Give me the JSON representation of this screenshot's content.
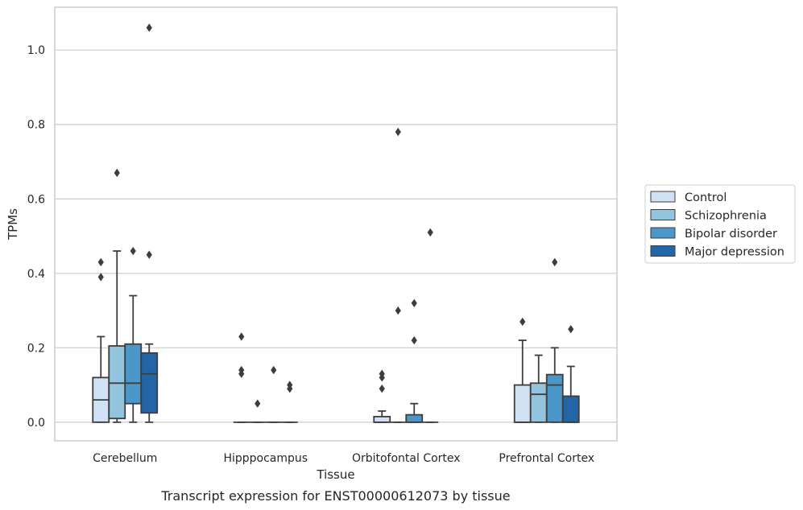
{
  "chart_data": {
    "type": "box",
    "xlabel": "Tissue",
    "ylabel": "TPMs",
    "caption": "Transcript expression for ENST00000612073 by tissue",
    "ylim": [
      -0.05,
      1.115
    ],
    "yticks": [
      0.0,
      0.2,
      0.4,
      0.6,
      0.8,
      1.0
    ],
    "ytick_labels": [
      "0.0",
      "0.2",
      "0.4",
      "0.6",
      "0.8",
      "1.0"
    ],
    "grid": true,
    "legend_position": "right",
    "categories": [
      "Cerebellum",
      "Hipppocampus",
      "Orbitofontal Cortex",
      "Prefrontal Cortex"
    ],
    "series": [
      {
        "name": "Control",
        "color": "#cfe1f2",
        "boxes": [
          {
            "q1": 0.0,
            "median": 0.06,
            "q3": 0.12,
            "whisker_low": 0.0,
            "whisker_high": 0.23,
            "outliers": [
              0.39,
              0.43
            ]
          },
          {
            "q1": 0.0,
            "median": 0.0,
            "q3": 0.0,
            "whisker_low": 0.0,
            "whisker_high": 0.0,
            "outliers": [
              0.13,
              0.14,
              0.23
            ]
          },
          {
            "q1": 0.0,
            "median": 0.0,
            "q3": 0.015,
            "whisker_low": 0.0,
            "whisker_high": 0.03,
            "outliers": [
              0.09,
              0.12,
              0.13
            ]
          },
          {
            "q1": 0.0,
            "median": 0.0,
            "q3": 0.1,
            "whisker_low": 0.0,
            "whisker_high": 0.22,
            "outliers": [
              0.27
            ]
          }
        ]
      },
      {
        "name": "Schizophrenia",
        "color": "#93c4de",
        "boxes": [
          {
            "q1": 0.01,
            "median": 0.105,
            "q3": 0.205,
            "whisker_low": 0.0,
            "whisker_high": 0.46,
            "outliers": [
              0.67
            ]
          },
          {
            "q1": 0.0,
            "median": 0.0,
            "q3": 0.0,
            "whisker_low": 0.0,
            "whisker_high": 0.0,
            "outliers": [
              0.05
            ]
          },
          {
            "q1": 0.0,
            "median": 0.0,
            "q3": 0.0,
            "whisker_low": 0.0,
            "whisker_high": 0.0,
            "outliers": [
              0.3,
              0.78
            ]
          },
          {
            "q1": 0.0,
            "median": 0.075,
            "q3": 0.105,
            "whisker_low": 0.0,
            "whisker_high": 0.18,
            "outliers": []
          }
        ]
      },
      {
        "name": "Bipolar disorder",
        "color": "#4b97c9",
        "boxes": [
          {
            "q1": 0.05,
            "median": 0.105,
            "q3": 0.21,
            "whisker_low": 0.0,
            "whisker_high": 0.34,
            "outliers": [
              0.46
            ]
          },
          {
            "q1": 0.0,
            "median": 0.0,
            "q3": 0.0,
            "whisker_low": 0.0,
            "whisker_high": 0.0,
            "outliers": [
              0.14
            ]
          },
          {
            "q1": 0.0,
            "median": 0.0,
            "q3": 0.02,
            "whisker_low": 0.0,
            "whisker_high": 0.05,
            "outliers": [
              0.22,
              0.32
            ]
          },
          {
            "q1": 0.0,
            "median": 0.1,
            "q3": 0.128,
            "whisker_low": 0.0,
            "whisker_high": 0.2,
            "outliers": [
              0.43
            ]
          }
        ]
      },
      {
        "name": "Major depression",
        "color": "#2366a8",
        "boxes": [
          {
            "q1": 0.025,
            "median": 0.13,
            "q3": 0.186,
            "whisker_low": 0.0,
            "whisker_high": 0.21,
            "outliers": [
              0.45,
              1.06
            ]
          },
          {
            "q1": 0.0,
            "median": 0.0,
            "q3": 0.0,
            "whisker_low": 0.0,
            "whisker_high": 0.0,
            "outliers": [
              0.09,
              0.1
            ]
          },
          {
            "q1": 0.0,
            "median": 0.0,
            "q3": 0.0,
            "whisker_low": 0.0,
            "whisker_high": 0.0,
            "outliers": [
              0.51
            ]
          },
          {
            "q1": 0.0,
            "median": 0.0,
            "q3": 0.07,
            "whisker_low": 0.0,
            "whisker_high": 0.15,
            "outliers": [
              0.25
            ]
          }
        ]
      }
    ],
    "colors": {
      "grid": "#cccccc",
      "frame": "#cccccc",
      "box_line": "#3d3d3d",
      "background": "#ffffff"
    }
  }
}
